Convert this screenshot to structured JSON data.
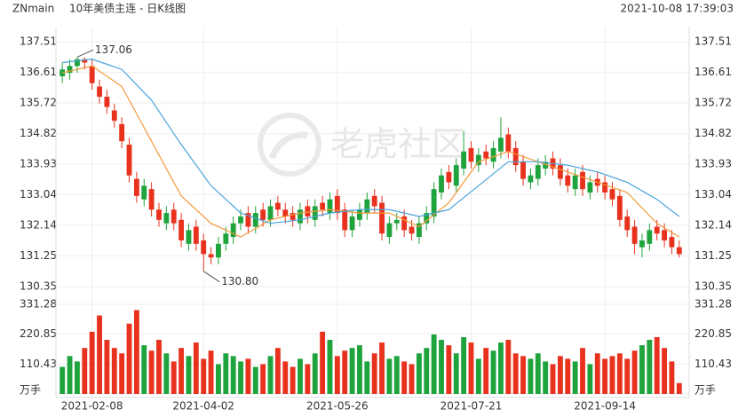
{
  "chart_data": {
    "type": "candlestick",
    "symbol": "ZNmain",
    "title": "10年美债主连 - 日K线图",
    "timestamp": "2021-10-08 17:39:03",
    "watermark": "老虎社区",
    "categories": [
      null,
      null,
      null,
      null,
      "2021-02-08",
      null,
      null,
      null,
      null,
      null,
      null,
      null,
      null,
      null,
      null,
      null,
      null,
      null,
      null,
      "2021-04-02",
      null,
      null,
      null,
      null,
      null,
      null,
      null,
      null,
      null,
      null,
      null,
      null,
      null,
      null,
      null,
      null,
      null,
      "2021-05-26",
      null,
      null,
      null,
      null,
      null,
      null,
      null,
      null,
      null,
      null,
      null,
      null,
      null,
      null,
      null,
      null,
      null,
      "2021-07-21",
      null,
      null,
      null,
      null,
      null,
      null,
      null,
      null,
      null,
      null,
      null,
      null,
      null,
      null,
      null,
      null,
      null,
      "2021-09-14",
      null,
      null,
      null,
      null,
      null,
      null,
      null,
      null,
      null,
      null
    ],
    "open": [
      136.5,
      136.6,
      136.8,
      137.0,
      136.8,
      136.2,
      135.9,
      135.5,
      135.1,
      134.5,
      133.5,
      132.9,
      133.2,
      132.6,
      132.2,
      132.6,
      132.3,
      131.6,
      132.1,
      131.7,
      131.3,
      131.2,
      131.6,
      131.8,
      132.2,
      132.5,
      132.1,
      132.6,
      132.3,
      132.8,
      132.6,
      132.5,
      132.2,
      132.7,
      132.3,
      132.8,
      132.5,
      133.0,
      132.6,
      132.0,
      132.3,
      132.5,
      133.0,
      132.8,
      131.8,
      132.2,
      132.4,
      132.1,
      131.8,
      132.2,
      132.4,
      133.1,
      133.7,
      133.3,
      133.8,
      134.4,
      133.9,
      134.3,
      134.0,
      134.3,
      134.8,
      134.4,
      134.0,
      133.4,
      133.5,
      133.8,
      134.1,
      133.9,
      133.6,
      133.2,
      133.7,
      133.1,
      133.5,
      133.4,
      133.2,
      133.0,
      132.4,
      132.1,
      131.5,
      131.6,
      132.1,
      132.0,
      131.8,
      131.5
    ],
    "close": [
      136.7,
      136.8,
      137.0,
      136.9,
      136.3,
      135.9,
      135.6,
      135.2,
      134.6,
      133.6,
      133.0,
      133.3,
      132.6,
      132.3,
      132.5,
      132.2,
      131.7,
      132.0,
      131.6,
      131.3,
      131.2,
      131.6,
      131.9,
      132.2,
      132.4,
      132.1,
      132.5,
      132.3,
      132.7,
      132.6,
      132.4,
      132.3,
      132.6,
      132.4,
      132.7,
      132.6,
      132.9,
      132.5,
      132.0,
      132.4,
      132.6,
      132.9,
      132.7,
      131.9,
      132.2,
      132.3,
      132.0,
      131.9,
      132.2,
      132.5,
      133.2,
      133.6,
      133.4,
      133.9,
      134.3,
      134.0,
      134.2,
      134.1,
      134.4,
      134.7,
      134.3,
      133.9,
      133.5,
      133.6,
      133.9,
      134.0,
      133.8,
      133.5,
      133.3,
      133.6,
      133.2,
      133.4,
      133.3,
      133.1,
      132.9,
      132.3,
      132.0,
      131.6,
      131.7,
      132.0,
      131.9,
      131.7,
      131.5,
      131.3
    ],
    "high": [
      136.9,
      137.0,
      137.06,
      137.05,
      137.0,
      136.4,
      136.1,
      135.7,
      135.3,
      134.7,
      133.7,
      133.5,
      133.4,
      132.8,
      132.7,
      132.8,
      132.5,
      132.2,
      132.3,
      131.9,
      131.5,
      131.8,
      132.1,
      132.4,
      132.6,
      132.7,
      132.7,
      132.8,
      132.9,
      133.0,
      132.8,
      132.7,
      132.8,
      132.9,
      132.9,
      133.0,
      133.1,
      133.2,
      132.8,
      132.6,
      132.8,
      133.1,
      133.2,
      133.0,
      132.4,
      132.5,
      132.6,
      132.3,
      132.4,
      132.7,
      133.4,
      133.8,
      133.9,
      134.1,
      134.9,
      134.6,
      134.4,
      134.5,
      134.6,
      135.3,
      135.0,
      134.6,
      134.2,
      133.8,
      134.1,
      134.2,
      134.3,
      134.1,
      133.8,
      133.8,
      133.9,
      133.6,
      133.7,
      133.6,
      133.4,
      133.2,
      132.6,
      132.3,
      131.9,
      132.2,
      132.3,
      132.2,
      132.0,
      131.7
    ],
    "low": [
      136.3,
      136.4,
      136.6,
      136.7,
      136.1,
      135.7,
      135.4,
      135.0,
      134.4,
      133.4,
      132.8,
      132.7,
      132.4,
      132.1,
      132.0,
      132.0,
      131.5,
      131.4,
      131.4,
      130.8,
      131.0,
      131.0,
      131.4,
      131.6,
      132.0,
      131.9,
      131.9,
      132.1,
      132.1,
      132.4,
      132.2,
      132.1,
      132.0,
      132.2,
      132.1,
      132.4,
      132.3,
      132.3,
      131.8,
      131.8,
      132.1,
      132.3,
      132.5,
      131.7,
      131.6,
      132.0,
      131.8,
      131.7,
      131.6,
      132.0,
      132.2,
      132.9,
      133.2,
      133.1,
      133.6,
      133.8,
      133.7,
      133.9,
      133.8,
      134.1,
      134.1,
      133.7,
      133.3,
      133.2,
      133.3,
      133.6,
      133.6,
      133.3,
      133.1,
      133.0,
      133.0,
      132.9,
      133.1,
      132.9,
      132.7,
      132.1,
      131.8,
      131.3,
      131.2,
      131.4,
      131.7,
      131.5,
      131.3,
      131.2
    ],
    "max_label": "137.06",
    "min_label": "130.80",
    "volume": [
      100,
      140,
      120,
      170,
      230,
      290,
      200,
      170,
      150,
      260,
      310,
      180,
      160,
      200,
      150,
      120,
      170,
      140,
      190,
      130,
      160,
      110,
      150,
      140,
      120,
      130,
      100,
      110,
      140,
      170,
      120,
      100,
      130,
      110,
      150,
      230,
      200,
      140,
      160,
      170,
      180,
      120,
      150,
      190,
      130,
      140,
      120,
      110,
      150,
      170,
      220,
      200,
      180,
      150,
      210,
      190,
      130,
      170,
      160,
      190,
      200,
      150,
      140,
      130,
      150,
      120,
      110,
      140,
      130,
      120,
      170,
      110,
      150,
      130,
      140,
      150,
      130,
      160,
      180,
      200,
      210,
      170,
      120,
      40
    ],
    "up_color": "#1fa33c",
    "down_color": "#e8321e",
    "ma_x": [
      0,
      4,
      8,
      12,
      16,
      20,
      24,
      28,
      32,
      36,
      40,
      44,
      48,
      52,
      56,
      60,
      64,
      68,
      72,
      76,
      80,
      83
    ],
    "ma": [
      {
        "color": "#f39a3b",
        "values": [
          136.6,
          136.8,
          136.2,
          134.6,
          133.0,
          132.2,
          131.8,
          132.3,
          132.5,
          132.6,
          132.5,
          132.5,
          132.1,
          132.8,
          134.0,
          134.3,
          134.0,
          133.7,
          133.4,
          133.1,
          132.2,
          131.8
        ]
      },
      {
        "color": "#4aa3dc",
        "values": [
          136.9,
          137.0,
          136.7,
          135.8,
          134.5,
          133.3,
          132.5,
          132.2,
          132.3,
          132.5,
          132.6,
          132.6,
          132.4,
          132.6,
          133.3,
          134.0,
          134.0,
          133.9,
          133.7,
          133.4,
          132.9,
          132.4
        ]
      }
    ],
    "ylim": [
      130.35,
      137.51
    ],
    "yticks": [
      137.51,
      136.61,
      135.72,
      134.82,
      133.93,
      133.04,
      132.14,
      131.25,
      130.35
    ],
    "y2lim": [
      0,
      331.28
    ],
    "y2ticks": [
      {
        "value": 0,
        "label": "万手"
      },
      110.43,
      220.85,
      331.28
    ],
    "grid": true
  }
}
